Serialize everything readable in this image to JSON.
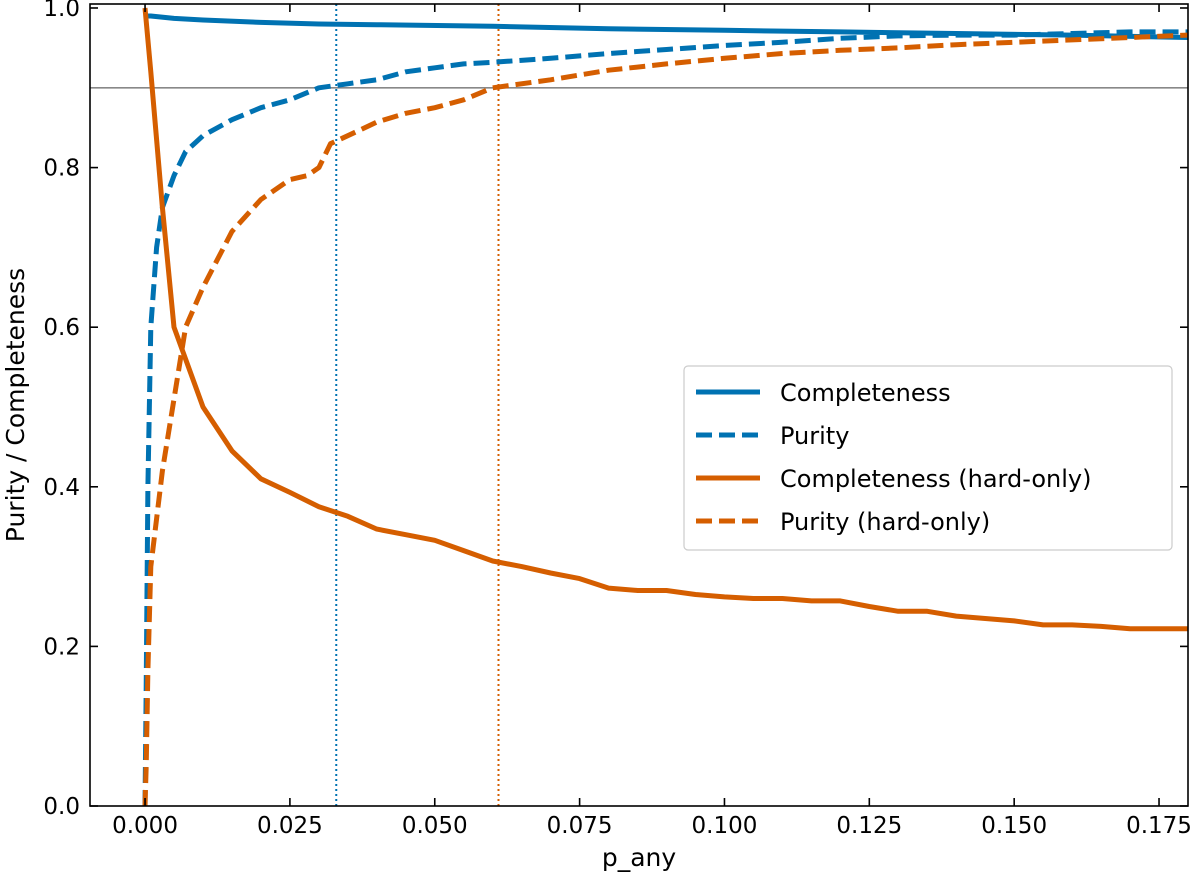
{
  "chart_data": {
    "type": "line",
    "title": "",
    "xlabel": "p_any",
    "ylabel": "Purity / Completeness",
    "xlim": [
      -0.0095,
      0.18
    ],
    "ylim": [
      0.0,
      1.005
    ],
    "xticks": [
      0.0,
      0.025,
      0.05,
      0.075,
      0.1,
      0.125,
      0.15,
      0.175
    ],
    "xtick_labels": [
      "0.000",
      "0.025",
      "0.050",
      "0.075",
      "0.100",
      "0.125",
      "0.150",
      "0.175"
    ],
    "yticks": [
      0.0,
      0.2,
      0.4,
      0.6,
      0.8,
      1.0
    ],
    "ytick_labels": [
      "0.0",
      "0.2",
      "0.4",
      "0.6",
      "0.8",
      "1.0"
    ],
    "grid": false,
    "legend_position": "center-right",
    "reference_lines": [
      {
        "orientation": "horizontal",
        "value": 0.9,
        "color": "#888888",
        "style": "solid"
      },
      {
        "orientation": "vertical",
        "value": 0.033,
        "color": "#0072b2",
        "style": "dotted"
      },
      {
        "orientation": "vertical",
        "value": 0.061,
        "color": "#d55e00",
        "style": "dotted"
      }
    ],
    "series": [
      {
        "name": "Completeness",
        "color": "#0072b2",
        "style": "solid",
        "x": [
          0.0,
          0.001,
          0.005,
          0.01,
          0.02,
          0.03,
          0.04,
          0.06,
          0.08,
          0.1,
          0.12,
          0.14,
          0.16,
          0.18
        ],
        "values": [
          0.99,
          0.99,
          0.987,
          0.985,
          0.982,
          0.98,
          0.979,
          0.977,
          0.974,
          0.972,
          0.97,
          0.968,
          0.966,
          0.963
        ]
      },
      {
        "name": "Purity",
        "color": "#0072b2",
        "style": "dashed",
        "x": [
          0.0,
          0.0002,
          0.0005,
          0.001,
          0.002,
          0.003,
          0.005,
          0.007,
          0.01,
          0.015,
          0.02,
          0.025,
          0.03,
          0.035,
          0.04,
          0.045,
          0.05,
          0.055,
          0.06,
          0.07,
          0.08,
          0.09,
          0.1,
          0.11,
          0.12,
          0.13,
          0.14,
          0.15,
          0.16,
          0.17,
          0.18
        ],
        "values": [
          0.0,
          0.15,
          0.4,
          0.6,
          0.7,
          0.75,
          0.79,
          0.82,
          0.84,
          0.86,
          0.875,
          0.885,
          0.9,
          0.905,
          0.91,
          0.92,
          0.925,
          0.93,
          0.932,
          0.937,
          0.943,
          0.948,
          0.953,
          0.957,
          0.962,
          0.965,
          0.966,
          0.966,
          0.968,
          0.97,
          0.97
        ]
      },
      {
        "name": "Completeness (hard-only)",
        "color": "#d55e00",
        "style": "solid",
        "x": [
          0.0,
          0.001,
          0.003,
          0.005,
          0.01,
          0.015,
          0.02,
          0.025,
          0.03,
          0.035,
          0.04,
          0.045,
          0.05,
          0.055,
          0.06,
          0.065,
          0.07,
          0.075,
          0.08,
          0.085,
          0.09,
          0.095,
          0.1,
          0.105,
          0.11,
          0.115,
          0.12,
          0.125,
          0.13,
          0.135,
          0.14,
          0.145,
          0.15,
          0.155,
          0.16,
          0.165,
          0.17,
          0.175,
          0.18
        ],
        "values": [
          1.0,
          0.92,
          0.75,
          0.6,
          0.5,
          0.445,
          0.41,
          0.393,
          0.375,
          0.363,
          0.347,
          0.34,
          0.333,
          0.32,
          0.307,
          0.3,
          0.292,
          0.285,
          0.273,
          0.27,
          0.27,
          0.265,
          0.262,
          0.26,
          0.26,
          0.257,
          0.257,
          0.25,
          0.244,
          0.244,
          0.238,
          0.235,
          0.232,
          0.227,
          0.227,
          0.225,
          0.222,
          0.222,
          0.222
        ]
      },
      {
        "name": "Purity (hard-only)",
        "color": "#d55e00",
        "style": "dashed",
        "x": [
          0.0,
          0.0002,
          0.0005,
          0.001,
          0.002,
          0.003,
          0.005,
          0.007,
          0.01,
          0.015,
          0.02,
          0.025,
          0.028,
          0.03,
          0.032,
          0.035,
          0.04,
          0.045,
          0.05,
          0.055,
          0.06,
          0.07,
          0.08,
          0.09,
          0.1,
          0.11,
          0.12,
          0.13,
          0.14,
          0.15,
          0.16,
          0.17,
          0.18
        ],
        "values": [
          0.0,
          0.05,
          0.17,
          0.3,
          0.36,
          0.42,
          0.51,
          0.6,
          0.65,
          0.72,
          0.76,
          0.785,
          0.79,
          0.8,
          0.83,
          0.84,
          0.857,
          0.868,
          0.875,
          0.885,
          0.9,
          0.91,
          0.922,
          0.93,
          0.937,
          0.943,
          0.947,
          0.95,
          0.954,
          0.957,
          0.96,
          0.963,
          0.966
        ]
      }
    ]
  }
}
